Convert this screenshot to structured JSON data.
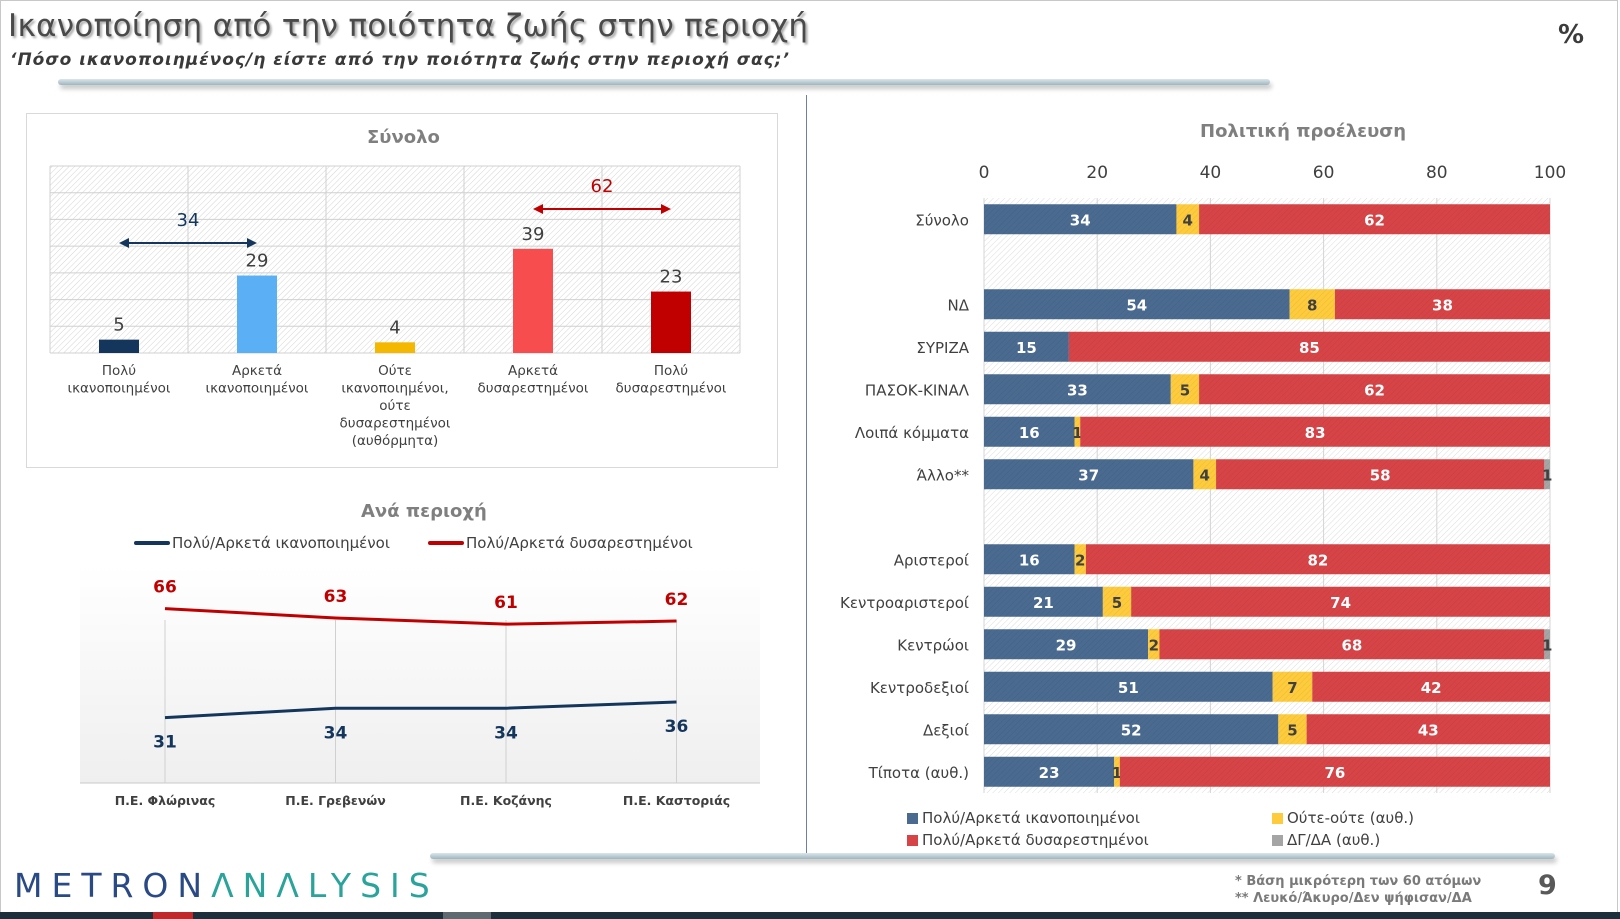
{
  "header": {
    "title": "Ικανοποίηση από την ποιότητα ζωής στην περιοχή",
    "subtitle": "‘Πόσο ικανοποιημένος/η είστε από την ποιότητα ζωής στην περιοχή σας;’",
    "unit": "%"
  },
  "footer": {
    "logo_part1": "METRON",
    "logo_part2": "ΛNΛLYSIS",
    "footnote1": "*  Βάση μικρότερη των 60 ατόμων",
    "footnote2": "** Λευκό/Άκυρο/Δεν ψήφισαν/ΔΑ",
    "page_number": "9"
  },
  "chart_data": [
    {
      "type": "bar",
      "title": "Σύνολο",
      "categories": [
        "Πολύ ικανοποιημένοι",
        "Αρκετά ικανοποιημένοι",
        "Ούτε ικανοποιημένοι, ούτε δυσαρεστημένοι (αυθόρμητα)",
        "Αρκετά δυσαρεστημένοι",
        "Πολύ δυσαρεστημένοι"
      ],
      "category_lines": [
        [
          "Πολύ",
          "ικανοποιημένοι"
        ],
        [
          "Αρκετά",
          "ικανοποιημένοι"
        ],
        [
          "Ούτε",
          "ικανοποιημένοι,",
          "ούτε",
          "δυσαρεστημένοι",
          "(αυθόρμητα)"
        ],
        [
          "Αρκετά",
          "δυσαρεστημένοι"
        ],
        [
          "Πολύ",
          "δυσαρεστημένοι"
        ]
      ],
      "values": [
        5,
        29,
        4,
        39,
        23
      ],
      "colors": [
        "#14365d",
        "#5aaff5",
        "#f5b800",
        "#f74d4f",
        "#c00000"
      ],
      "ylim": [
        0,
        70
      ],
      "grid": true,
      "annotations": [
        {
          "label": "34",
          "spans": [
            0,
            1
          ],
          "color": "#14365d"
        },
        {
          "label": "62",
          "spans": [
            3,
            4
          ],
          "color": "#c00000"
        }
      ]
    },
    {
      "type": "line",
      "title": "Ανά περιοχή",
      "categories": [
        "Π.Ε. Φλώρινας",
        "Π.Ε. Γρεβενών",
        "Π.Ε. Κοζάνης",
        "Π.Ε. Καστοριάς"
      ],
      "series": [
        {
          "name": "Πολύ/Αρκετά ικανοποιημένοι",
          "values": [
            31,
            34,
            34,
            36
          ],
          "color": "#14365d"
        },
        {
          "name": "Πολύ/Αρκετά δυσαρεστημένοι",
          "values": [
            66,
            63,
            61,
            62
          ],
          "color": "#c00000"
        }
      ],
      "ylim": [
        10,
        80
      ],
      "legend": "top"
    },
    {
      "type": "bar",
      "orientation": "horizontal-stacked",
      "title": "Πολιτική προέλευση",
      "xlim": [
        0,
        100
      ],
      "xticks": [
        0,
        20,
        40,
        60,
        80,
        100
      ],
      "categories": [
        "Σύνολο",
        "",
        "ΝΔ",
        "ΣΥΡΙΖΑ",
        "ΠΑΣΟΚ-ΚΙΝΑΛ",
        "Λοιπά κόμματα",
        "Άλλο**",
        "",
        "Αριστεροί",
        "Κεντροαριστεροί",
        "Κεντρώοι",
        "Κεντροδεξιοί",
        "Δεξιοί",
        "Τίποτα (αυθ.)"
      ],
      "series": [
        {
          "name": "Πολύ/Αρκετά ικανοποιημένοι",
          "color": "#4a6a90",
          "values": [
            34,
            null,
            54,
            15,
            33,
            16,
            37,
            null,
            16,
            21,
            29,
            51,
            52,
            23
          ]
        },
        {
          "name": "Ούτε-ούτε (αυθ.)",
          "color": "#fdcb3c",
          "values": [
            4,
            null,
            8,
            0,
            5,
            1,
            4,
            null,
            2,
            5,
            2,
            7,
            5,
            1
          ]
        },
        {
          "name": "Πολύ/Αρκετά δυσαρεστημένοι",
          "color": "#d64447",
          "values": [
            62,
            null,
            38,
            85,
            62,
            83,
            58,
            null,
            82,
            74,
            68,
            42,
            43,
            76
          ]
        },
        {
          "name": "ΔΓ/ΔΑ (αυθ.)",
          "color": "#a5a5a5",
          "values": [
            0,
            null,
            0,
            0,
            0,
            0,
            1,
            null,
            0,
            0,
            1,
            0,
            0,
            0
          ]
        }
      ],
      "legend": "bottom"
    }
  ]
}
